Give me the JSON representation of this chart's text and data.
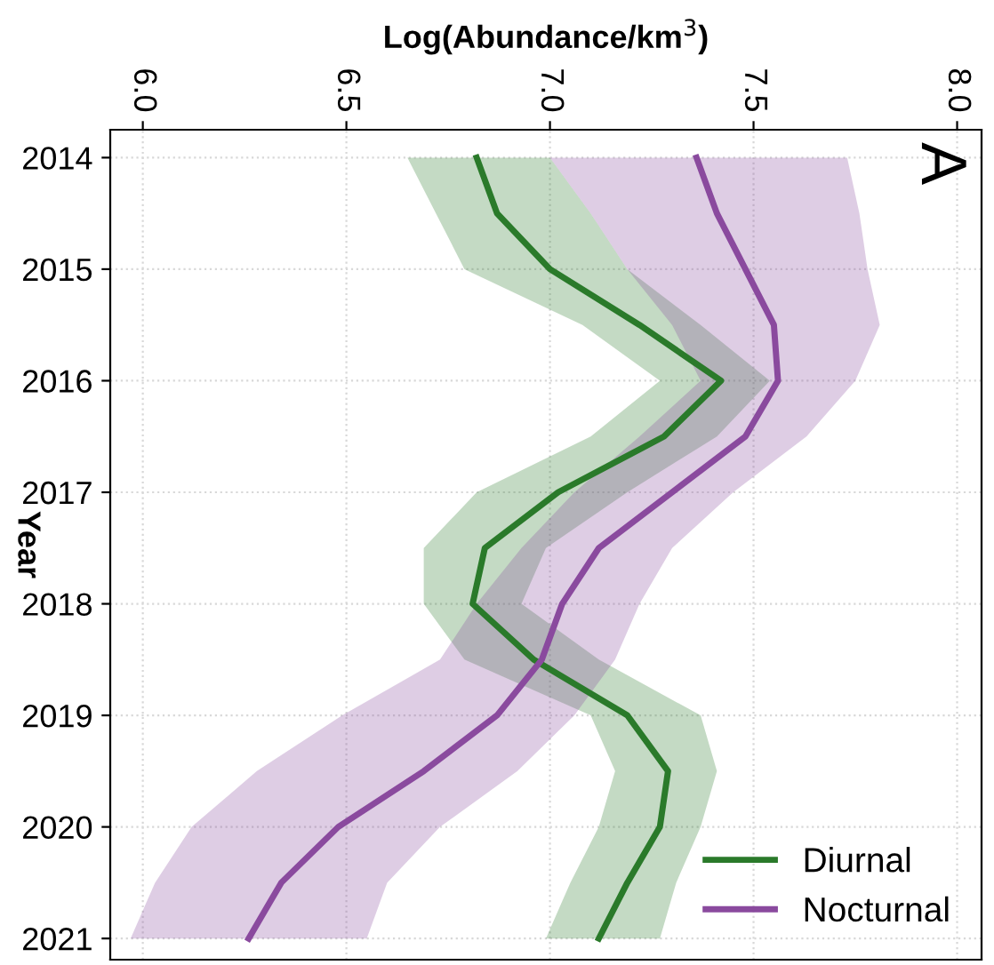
{
  "chart_data": {
    "type": "line",
    "orientation": "horizontal",
    "xlabel": "Log(Abundance/km$^{3}$)",
    "ylabel": "Year",
    "annotations": [
      "A"
    ],
    "x": [
      2014,
      2014.5,
      2015,
      2015.5,
      2016,
      2016.5,
      2017,
      2017.5,
      2018,
      2018.5,
      2019,
      2019.5,
      2020,
      2020.5,
      2021
    ],
    "series": [
      {
        "name": "Diurnal",
        "color": "#2a7a2a",
        "values": [
          6.82,
          6.87,
          7.0,
          7.22,
          7.42,
          7.28,
          7.02,
          6.84,
          6.81,
          6.96,
          7.19,
          7.29,
          7.27,
          7.19,
          7.12
        ],
        "lower": [
          6.65,
          6.72,
          6.79,
          7.08,
          7.27,
          7.1,
          6.82,
          6.69,
          6.69,
          6.79,
          7.1,
          7.16,
          7.12,
          7.05,
          6.99
        ],
        "upper": [
          7.0,
          7.1,
          7.19,
          7.37,
          7.54,
          7.41,
          7.19,
          6.99,
          6.93,
          7.12,
          7.37,
          7.41,
          7.37,
          7.31,
          7.27
        ]
      },
      {
        "name": "Nocturnal",
        "color": "#8a4a9e",
        "values": [
          7.36,
          7.41,
          7.48,
          7.55,
          7.56,
          7.48,
          7.3,
          7.12,
          7.03,
          6.98,
          6.87,
          6.69,
          6.48,
          6.34,
          6.26
        ],
        "lower": [
          7.0,
          7.1,
          7.19,
          7.3,
          7.37,
          7.22,
          7.06,
          6.93,
          6.82,
          6.73,
          6.49,
          6.28,
          6.12,
          6.03,
          5.97
        ],
        "upper": [
          7.73,
          7.76,
          7.78,
          7.81,
          7.75,
          7.63,
          7.45,
          7.3,
          7.22,
          7.16,
          7.06,
          6.92,
          6.73,
          6.6,
          6.55
        ]
      }
    ],
    "xlim": [
      5.92,
      8.06
    ],
    "xticks": [
      {
        "value": 6.0,
        "label": "6.0"
      },
      {
        "value": 6.5,
        "label": "6.5"
      },
      {
        "value": 7.0,
        "label": "7.0"
      },
      {
        "value": 7.5,
        "label": "7.5"
      },
      {
        "value": 8.0,
        "label": "8.0"
      }
    ],
    "ylim": [
      2021.19,
      2013.75
    ],
    "yticks": [
      2014,
      2015,
      2016,
      2017,
      2018,
      2019,
      2020,
      2021
    ],
    "grid": true,
    "legend": "bottom right",
    "line_style": "solid",
    "marker": "none"
  }
}
